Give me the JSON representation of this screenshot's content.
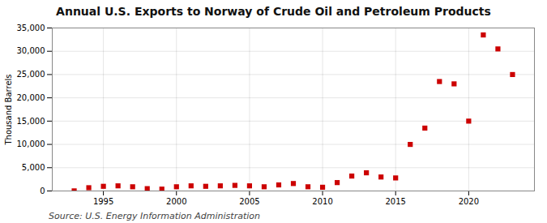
{
  "chart_data": {
    "type": "scatter",
    "title": "Annual U.S. Exports to Norway of Crude Oil and Petroleum Products",
    "ylabel": "Thousand Barrels",
    "source": "Source: U.S. Energy Information Administration",
    "x": [
      1993,
      1994,
      1995,
      1996,
      1997,
      1998,
      1999,
      2000,
      2001,
      2002,
      2003,
      2004,
      2005,
      2006,
      2007,
      2008,
      2009,
      2010,
      2011,
      2012,
      2013,
      2014,
      2015,
      2016,
      2017,
      2018,
      2019,
      2020,
      2021,
      2022,
      2023
    ],
    "values": [
      20,
      700,
      1000,
      1100,
      900,
      500,
      400,
      900,
      1100,
      1000,
      1100,
      1200,
      1100,
      900,
      1300,
      1600,
      900,
      800,
      1800,
      3200,
      3900,
      3000,
      2800,
      10000,
      13500,
      23500,
      23000,
      15000,
      33500,
      30500,
      25000
    ],
    "color": "#cc0000",
    "marker": "square",
    "xlim": [
      1991.5,
      2024.5
    ],
    "xticks": [
      1995,
      2000,
      2005,
      2010,
      2015,
      2020
    ],
    "ylim": [
      0,
      35000
    ],
    "yticks": [
      0,
      {
        "value": 5000,
        "label": "5,000"
      },
      {
        "value": 10000,
        "label": "10,000"
      },
      {
        "value": 15000,
        "label": "15,000"
      },
      {
        "value": 20000,
        "label": "20,000"
      },
      {
        "value": 25000,
        "label": "25,000"
      },
      {
        "value": 30000,
        "label": "30,000"
      },
      {
        "value": 35000,
        "label": "35,000"
      }
    ],
    "grid": true
  }
}
